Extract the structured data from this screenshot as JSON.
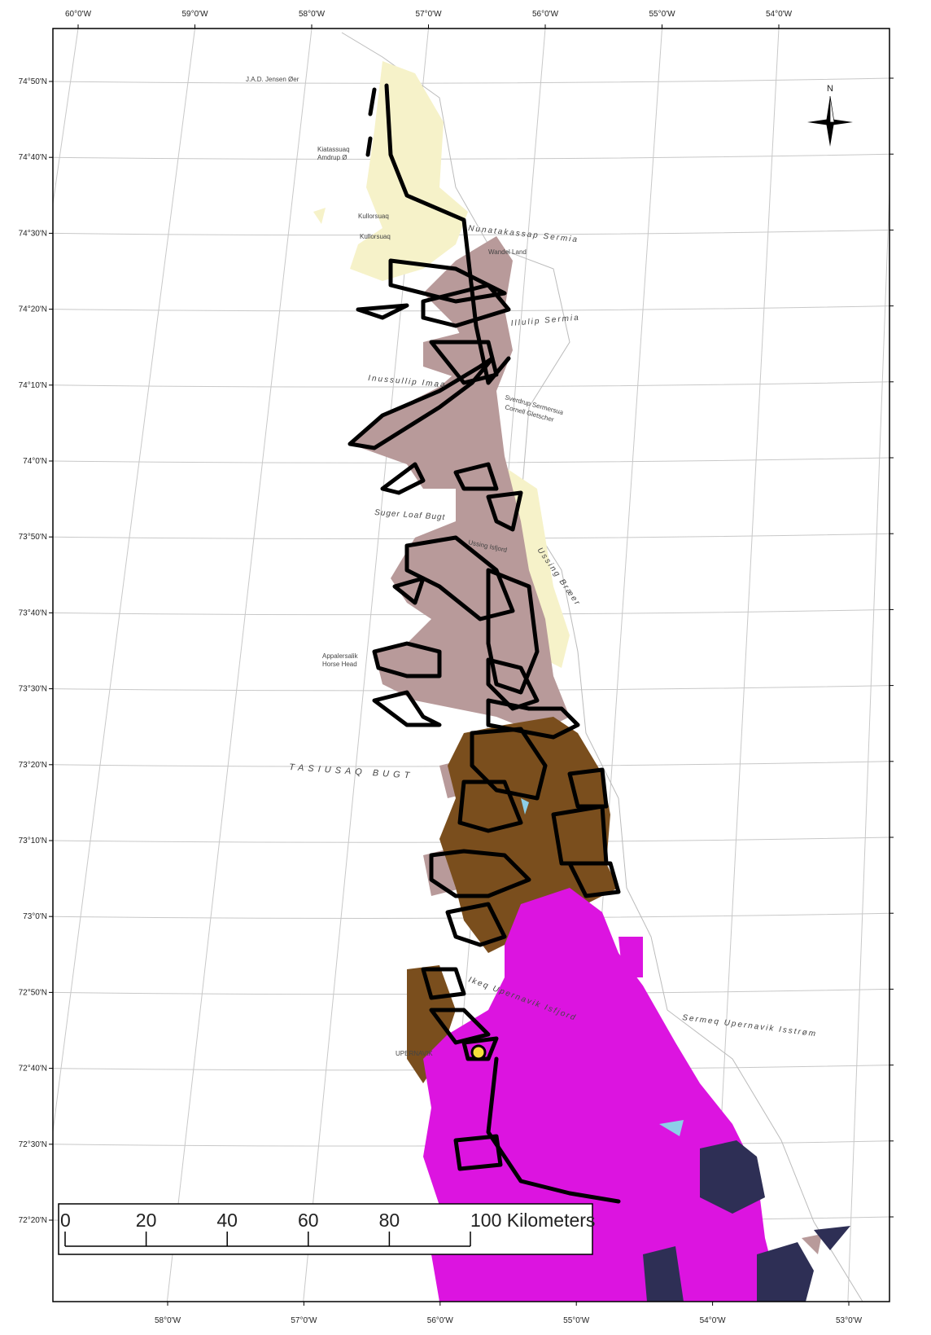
{
  "graticule": {
    "top_longitudes": [
      "60°0'W",
      "59°0'W",
      "58°0'W",
      "57°0'W",
      "56°0'W",
      "55°0'W",
      "54°0'W"
    ],
    "bottom_longitudes": [
      "58°0'W",
      "57°0'W",
      "56°0'W",
      "55°0'W",
      "54°0'W",
      "53°0'W"
    ],
    "left_latitudes": [
      "74°50'N",
      "74°40'N",
      "74°30'N",
      "74°20'N",
      "74°10'N",
      "74°0'N",
      "73°50'N",
      "73°40'N",
      "73°30'N",
      "73°20'N",
      "73°10'N",
      "73°0'N",
      "72°50'N",
      "72°40'N",
      "72°30'N",
      "72°20'N"
    ]
  },
  "north_arrow": {
    "label": "N"
  },
  "places": {
    "jensen": "J.A.D. Jensen Øer",
    "kiatassuaq": "Kiatassuaq",
    "amdrup": "Amdrup Ø",
    "kullorsuaq": "Kullorsuaq",
    "kullorsuaq2": "Kullorsuaq",
    "nunatakassap": "Nunatakassap Sermia",
    "wandel": "Wandel Land",
    "illulip": "Illulip Sermia",
    "inussullip": "Inussullip Imaa",
    "sverdrup": "Sverdrup Sermersua",
    "cornell": "Cornell Gletscher",
    "sugar_loaf": "Suger Loaf Bugt",
    "ussing_isfjord": "Ussing Isfjord",
    "ussing_braeer": "Ussing Bræer",
    "appalersalik": "Appalersalik",
    "horse_head": "Horse Head",
    "tasiusaq": "TASIUSAQ BUGT",
    "ikeq": "Ikeq Upernavik Isfjord",
    "sermeq": "Sermeq Upernavik Isstrøm",
    "upernavik": "UPERNAVIK"
  },
  "scale_bar": {
    "labels": [
      "0",
      "20",
      "40",
      "60",
      "80",
      "100 Kilometers"
    ]
  }
}
